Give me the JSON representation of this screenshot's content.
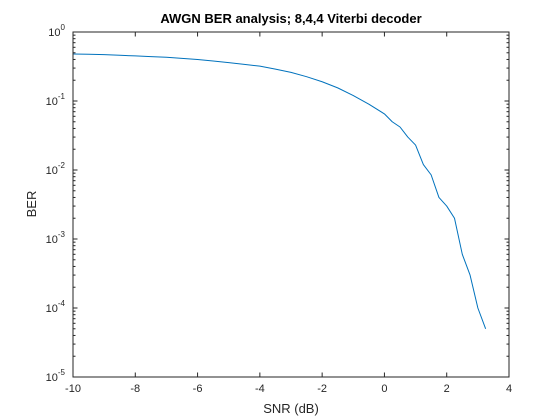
{
  "chart_data": {
    "type": "line",
    "title": "AWGN BER analysis; 8,4,4 Viterbi decoder",
    "xlabel": "SNR (dB)",
    "ylabel": "BER",
    "xlim": [
      -10,
      4
    ],
    "ylim": [
      1e-05,
      1
    ],
    "yscale": "log",
    "grid": false,
    "legend": "none",
    "x_ticks": [
      "-10",
      "-8",
      "-6",
      "-4",
      "-2",
      "0",
      "2",
      "4"
    ],
    "y_ticks": [
      {
        "base": "10",
        "exp": "0"
      },
      {
        "base": "10",
        "exp": "-1"
      },
      {
        "base": "10",
        "exp": "-2"
      },
      {
        "base": "10",
        "exp": "-3"
      },
      {
        "base": "10",
        "exp": "-4"
      },
      {
        "base": "10",
        "exp": "-5"
      }
    ],
    "series": [
      {
        "color": "#0072bd",
        "x": [
          -10,
          -9.5,
          -9,
          -8.5,
          -8,
          -7.5,
          -7,
          -6.5,
          -6,
          -5.5,
          -5,
          -4.5,
          -4,
          -3.5,
          -3,
          -2.5,
          -2,
          -1.5,
          -1,
          -0.5,
          0,
          0.25,
          0.5,
          0.75,
          1,
          1.25,
          1.5,
          1.75,
          2,
          2.25,
          2.5,
          2.75,
          3,
          3.25
        ],
        "y": [
          0.48,
          0.475,
          0.47,
          0.46,
          0.45,
          0.44,
          0.43,
          0.415,
          0.4,
          0.38,
          0.36,
          0.34,
          0.32,
          0.29,
          0.26,
          0.225,
          0.19,
          0.155,
          0.12,
          0.09,
          0.065,
          0.05,
          0.042,
          0.03,
          0.023,
          0.012,
          0.0085,
          0.004,
          0.003,
          0.002,
          0.0006,
          0.0003,
          0.0001,
          5e-05
        ]
      }
    ]
  }
}
